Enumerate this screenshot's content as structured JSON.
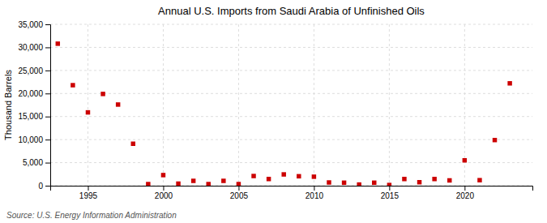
{
  "chart_data": {
    "type": "scatter",
    "title": "Annual U.S. Imports from Saudi Arabia of Unfinished Oils",
    "ylabel": "Thousand Barrels",
    "annotations": [
      "Source: U.S. Energy Information Administration"
    ],
    "x": [
      1993,
      1994,
      1995,
      1996,
      1997,
      1998,
      1999,
      2000,
      2001,
      2002,
      2003,
      2004,
      2005,
      2006,
      2007,
      2008,
      2009,
      2010,
      2011,
      2012,
      2013,
      2014,
      2015,
      2016,
      2017,
      2018,
      2019,
      2020,
      2021,
      2022,
      2023
    ],
    "values": [
      30800,
      21800,
      15900,
      19900,
      17600,
      9100,
      350,
      2300,
      450,
      1050,
      350,
      1050,
      350,
      2100,
      1450,
      2450,
      2050,
      1950,
      700,
      650,
      250,
      650,
      150,
      1450,
      750,
      1450,
      1150,
      5500,
      1200,
      9900,
      22200
    ],
    "color": "#cc0000",
    "marker": "square",
    "xlim": [
      1992.5,
      2024.5
    ],
    "xticks": [
      1995,
      2000,
      2005,
      2010,
      2015,
      2020
    ],
    "ylim": [
      0,
      35000
    ],
    "yticks": [
      0,
      {
        "value": 5000,
        "label": "5,000"
      },
      {
        "value": 10000,
        "label": "10,000"
      },
      {
        "value": 15000,
        "label": "15,000"
      },
      {
        "value": 20000,
        "label": "20,000"
      },
      {
        "value": 25000,
        "label": "25,000"
      },
      {
        "value": 30000,
        "label": "30,000"
      },
      {
        "value": 35000,
        "label": "35,000"
      }
    ],
    "grid": true
  }
}
